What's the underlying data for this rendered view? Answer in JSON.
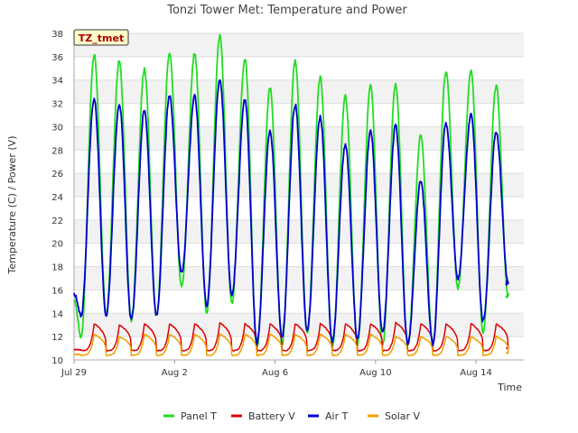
{
  "chart_data": {
    "type": "line",
    "title": "Tonzi Tower Met: Temperature and Power",
    "badge": "TZ_tmet",
    "xlabel": "Time",
    "ylabel": "Temperature (C) / Power (V)",
    "xlim": [
      0,
      17.9
    ],
    "ylim": [
      10,
      38
    ],
    "yticks": [
      10,
      12,
      14,
      16,
      18,
      20,
      22,
      24,
      26,
      28,
      30,
      32,
      34,
      36,
      38
    ],
    "xticks": [
      {
        "day": 0,
        "label": "Jul 29"
      },
      {
        "day": 4,
        "label": "Aug 2"
      },
      {
        "day": 8,
        "label": "Aug 6"
      },
      {
        "day": 12,
        "label": "Aug 10"
      },
      {
        "day": 16,
        "label": "Aug 14"
      }
    ],
    "grid": true,
    "legend_position": "bottom",
    "series": [
      {
        "name": "Panel T",
        "color": "#22dd22",
        "day_peaks": [
          36.2,
          35.7,
          34.9,
          36.4,
          36.3,
          37.8,
          35.9,
          33.3,
          35.7,
          34.2,
          32.6,
          33.6,
          33.6,
          29.2,
          34.7,
          34.8,
          33.5
        ],
        "night_mins": [
          12.0,
          14.0,
          13.4,
          13.8,
          16.2,
          14.0,
          14.8,
          11.0,
          11.3,
          12.4,
          11.1,
          11.3,
          11.2,
          11.2,
          11.3,
          16.2,
          12.4,
          15.5
        ],
        "start": 15.2,
        "end": 15.5
      },
      {
        "name": "Battery V",
        "color": "#dd0000",
        "day_peaks": [
          13.1,
          13.0,
          13.1,
          13.1,
          13.1,
          13.2,
          13.1,
          13.1,
          13.1,
          13.1,
          13.1,
          13.1,
          13.2,
          13.1,
          13.1,
          13.1,
          13.1
        ],
        "night_mins": [
          10.8,
          10.8,
          10.8,
          10.8,
          10.8,
          10.8,
          10.8,
          10.8,
          10.8,
          10.8,
          10.8,
          10.8,
          10.8,
          10.8,
          10.8,
          10.8,
          10.8,
          11.0
        ],
        "start": 10.9,
        "end": 11.0
      },
      {
        "name": "Air T",
        "color": "#0000cc",
        "day_peaks": [
          32.4,
          32.0,
          31.4,
          32.6,
          32.6,
          34.1,
          32.4,
          29.6,
          31.9,
          30.8,
          28.5,
          29.6,
          30.1,
          25.3,
          30.3,
          31.1,
          29.6
        ],
        "night_mins": [
          13.8,
          13.8,
          13.4,
          13.8,
          17.5,
          14.7,
          15.6,
          11.5,
          12.0,
          12.5,
          11.6,
          11.8,
          12.3,
          11.3,
          11.4,
          17.0,
          13.3,
          16.6
        ],
        "start": 15.7,
        "end": 16.6
      },
      {
        "name": "Solar V",
        "color": "#f0a000",
        "day_peaks": [
          12.2,
          12.0,
          12.2,
          12.2,
          12.2,
          12.2,
          12.2,
          12.2,
          12.2,
          12.2,
          12.2,
          12.2,
          12.0,
          12.0,
          12.0,
          12.0,
          12.0
        ],
        "night_mins": [
          10.4,
          10.4,
          10.4,
          10.4,
          10.4,
          10.4,
          10.4,
          10.4,
          10.4,
          10.4,
          10.4,
          10.4,
          10.4,
          10.4,
          10.4,
          10.4,
          10.4,
          10.6
        ],
        "start": 10.5,
        "end": 10.6
      }
    ]
  }
}
